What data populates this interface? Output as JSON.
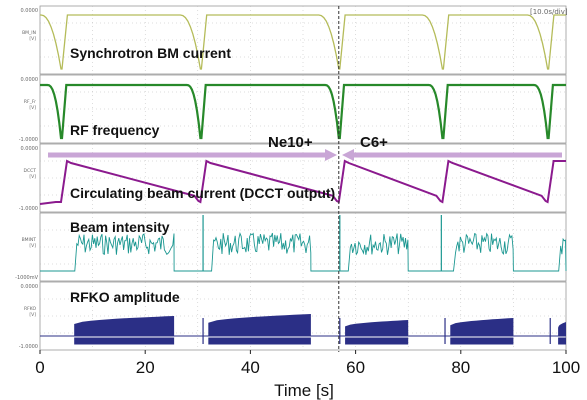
{
  "chart_data": {
    "type": "line",
    "xlabel": "Time [s]",
    "xlim": [
      0,
      100
    ],
    "x_ticks": [
      0,
      20,
      40,
      60,
      80,
      100
    ],
    "timebase": "[10.0s/div]",
    "cursor_x": 56.8,
    "annotations": [
      "Ne10+",
      "C6+"
    ],
    "cycle_starts": [
      4,
      30.5,
      56.8,
      76.5,
      96.5
    ],
    "panels": [
      {
        "name": "Synchrotron BM current",
        "color": "#b5bc5a",
        "y_top": "0.0000",
        "y_bottom": "",
        "channel": "BM_IN\n[V]"
      },
      {
        "name": "RF frequency",
        "color": "#27892a",
        "y_top": "0.0000",
        "y_bottom": "-1.0000",
        "channel": "RF_Fr\n[V]"
      },
      {
        "name": "Circulating beam current (DCCT output)",
        "color": "#8b1a8e",
        "y_top": "0.0000",
        "y_bottom": "-1.0000",
        "channel": "DCCT\n[V]"
      },
      {
        "name": "Beam intensity",
        "color": "#1b9791",
        "y_top": "",
        "y_bottom": "-1000mV",
        "channel": "BMINT\n[V]"
      },
      {
        "name": "RFKO amplitude",
        "color": "#2b2f86",
        "y_top": "0.0000",
        "y_bottom": "-1.0000",
        "channel": "RFKO\n[V]"
      }
    ]
  }
}
